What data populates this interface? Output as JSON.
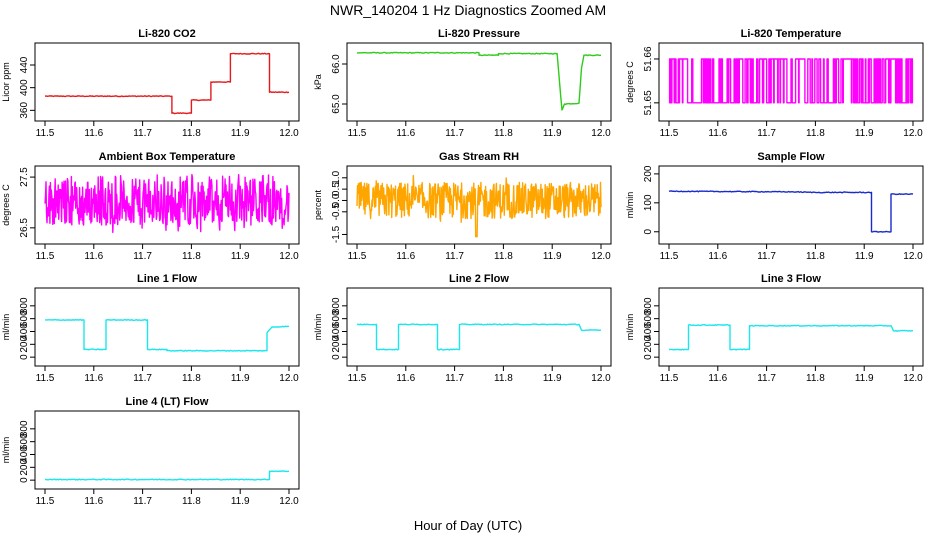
{
  "title": "NWR_140204  1 Hz Diagnostics Zoomed AM",
  "xlabel": "Hour of Day (UTC)",
  "chart_data": [
    {
      "type": "line",
      "title": "Li-820 CO2",
      "ylabel": "Licor ppm",
      "color": "#e41a1c",
      "xlim": [
        11.5,
        12.0
      ],
      "ylim": [
        350,
        470
      ],
      "xticks": [
        "11.5",
        "11.6",
        "11.7",
        "11.8",
        "11.9",
        "12.0"
      ],
      "yticks": [
        "360",
        "400",
        "440"
      ],
      "x": [
        11.5,
        11.76,
        11.76,
        11.8,
        11.8,
        11.84,
        11.84,
        11.88,
        11.88,
        11.96,
        11.96,
        12.0
      ],
      "y": [
        385,
        385,
        355,
        355,
        378,
        378,
        410,
        410,
        460,
        460,
        392,
        392
      ]
    },
    {
      "type": "line",
      "title": "Li-820 Pressure",
      "ylabel": "kPa",
      "color": "#2ecc1a",
      "xlim": [
        11.5,
        12.0
      ],
      "ylim": [
        64.7,
        66.4
      ],
      "xticks": [
        "11.5",
        "11.6",
        "11.7",
        "11.8",
        "11.9",
        "12.0"
      ],
      "yticks": [
        "65.0",
        "66.0"
      ],
      "x": [
        11.5,
        11.75,
        11.75,
        11.79,
        11.79,
        11.91,
        11.92,
        11.925,
        11.925,
        11.955,
        11.96,
        11.965,
        12.0
      ],
      "y": [
        66.28,
        66.28,
        66.22,
        66.22,
        66.26,
        66.26,
        64.85,
        65.0,
        65.0,
        65.02,
        65.9,
        66.22,
        66.22
      ]
    },
    {
      "type": "line",
      "title": "Li-820 Temperature",
      "ylabel": "degrees C",
      "color": "#ff00ff",
      "xlim": [
        11.5,
        12.0
      ],
      "ylim": [
        51.647,
        51.6625
      ],
      "xticks": [
        "11.5",
        "11.6",
        "11.7",
        "11.8",
        "11.9",
        "12.0"
      ],
      "yticks": [
        "51.65",
        "51.66"
      ],
      "levels": [
        51.65,
        51.66
      ],
      "x": [
        11.5,
        12.0
      ],
      "y": [
        51.65,
        51.66
      ]
    },
    {
      "type": "line",
      "title": "Ambient Box Temperature",
      "ylabel": "degrees C",
      "color": "#ff00ff",
      "xlim": [
        11.5,
        12.0
      ],
      "ylim": [
        26.28,
        27.62
      ],
      "xticks": [
        "11.5",
        "11.6",
        "11.7",
        "11.8",
        "11.9",
        "12.0"
      ],
      "yticks": [
        "26.5",
        "27.5"
      ],
      "x": [
        11.5,
        12.0
      ],
      "y": [
        27.0,
        27.0
      ]
    },
    {
      "type": "line",
      "title": "Gas Stream RH",
      "ylabel": "percent",
      "color": "#ffa500",
      "xlim": [
        11.5,
        12.0
      ],
      "ylim": [
        -1.7,
        1.3
      ],
      "xticks": [
        "11.5",
        "11.6",
        "11.7",
        "11.8",
        "11.9",
        "12.0"
      ],
      "yticks": [
        "-1.5",
        "-0.5",
        "0.0",
        "0.5",
        "1.0"
      ],
      "x": [
        11.5,
        12.0
      ],
      "y": [
        0.0,
        0.0
      ]
    },
    {
      "type": "line",
      "title": "Sample Flow",
      "ylabel": "ml/min",
      "color": "#1a2bcc",
      "xlim": [
        11.5,
        12.0
      ],
      "ylim": [
        -25,
        210
      ],
      "xticks": [
        "11.5",
        "11.6",
        "11.7",
        "11.8",
        "11.9",
        "12.0"
      ],
      "yticks": [
        "0",
        "100",
        "200"
      ],
      "x": [
        11.5,
        11.75,
        11.8,
        11.915,
        11.915,
        11.955,
        11.955,
        12.0
      ],
      "y": [
        140,
        138,
        136,
        136,
        0,
        0,
        130,
        130
      ]
    },
    {
      "type": "line",
      "title": "Line 1 Flow",
      "ylabel": "ml/min",
      "color": "#1ae6f0",
      "xlim": [
        11.5,
        12.0
      ],
      "ylim": [
        -60,
        1000
      ],
      "xticks": [
        "11.5",
        "11.6",
        "11.7",
        "11.8",
        "11.9",
        "12.0"
      ],
      "yticks": [
        "0",
        "200",
        "400",
        "600",
        "800"
      ],
      "x": [
        11.5,
        11.58,
        11.58,
        11.625,
        11.625,
        11.71,
        11.71,
        11.75,
        11.75,
        11.955,
        11.955,
        11.965,
        12.0
      ],
      "y": [
        580,
        580,
        120,
        120,
        580,
        580,
        120,
        120,
        100,
        100,
        380,
        470,
        480
      ]
    },
    {
      "type": "line",
      "title": "Line 2 Flow",
      "ylabel": "ml/min",
      "color": "#1ae6f0",
      "xlim": [
        11.5,
        12.0
      ],
      "ylim": [
        -60,
        1000
      ],
      "xticks": [
        "11.5",
        "11.6",
        "11.7",
        "11.8",
        "11.9",
        "12.0"
      ],
      "yticks": [
        "0",
        "200",
        "400",
        "600",
        "800"
      ],
      "x": [
        11.5,
        11.54,
        11.54,
        11.585,
        11.585,
        11.665,
        11.665,
        11.71,
        11.71,
        11.955,
        11.96,
        12.0
      ],
      "y": [
        510,
        510,
        120,
        120,
        510,
        510,
        120,
        120,
        510,
        510,
        420,
        420
      ]
    },
    {
      "type": "line",
      "title": "Line 3 Flow",
      "ylabel": "ml/min",
      "color": "#1ae6f0",
      "xlim": [
        11.5,
        12.0
      ],
      "ylim": [
        -60,
        1000
      ],
      "xticks": [
        "11.5",
        "11.6",
        "11.7",
        "11.8",
        "11.9",
        "12.0"
      ],
      "yticks": [
        "0",
        "200",
        "400",
        "600",
        "800"
      ],
      "x": [
        11.5,
        11.54,
        11.54,
        11.625,
        11.625,
        11.665,
        11.665,
        11.955,
        11.96,
        12.0
      ],
      "y": [
        120,
        120,
        500,
        500,
        120,
        120,
        490,
        490,
        410,
        410
      ]
    },
    {
      "type": "line",
      "title": "Line 4 (LT) Flow",
      "ylabel": "ml/min",
      "color": "#1ae6f0",
      "xlim": [
        11.5,
        12.0
      ],
      "ylim": [
        -60,
        1000
      ],
      "xticks": [
        "11.5",
        "11.6",
        "11.7",
        "11.8",
        "11.9",
        "12.0"
      ],
      "yticks": [
        "0",
        "200",
        "400",
        "600",
        "800"
      ],
      "x": [
        11.5,
        11.96,
        11.96,
        12.0
      ],
      "y": [
        10,
        10,
        140,
        140
      ]
    }
  ]
}
